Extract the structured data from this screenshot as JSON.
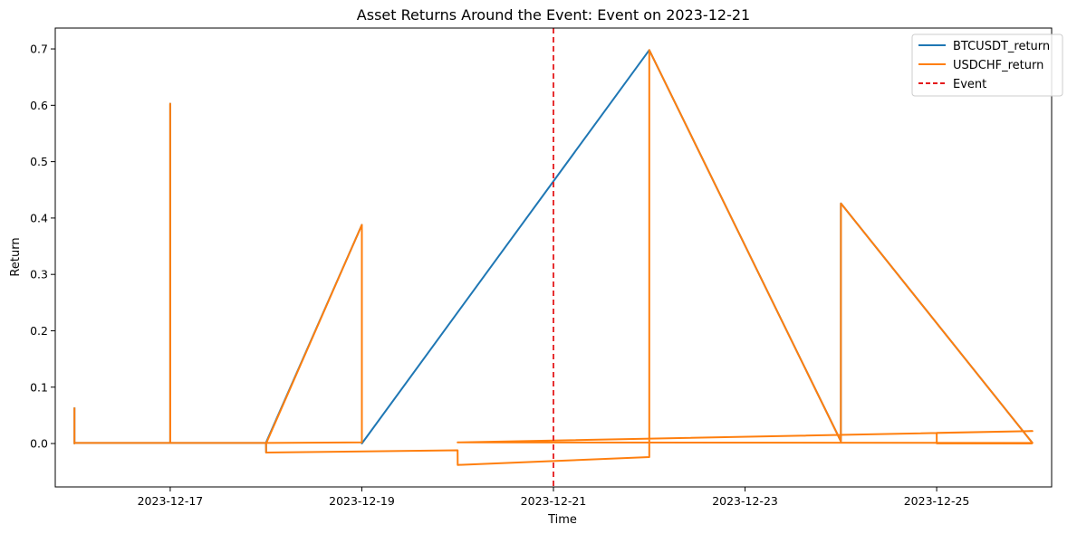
{
  "chart_data": {
    "type": "line",
    "title": "Asset Returns Around the Event: Event on 2023-12-21",
    "xlabel": "Time",
    "ylabel": "Return",
    "x_ticks": [
      "2023-12-17",
      "2023-12-19",
      "2023-12-21",
      "2023-12-23",
      "2023-12-25"
    ],
    "y_ticks": [
      "0.0",
      "0.1",
      "0.2",
      "0.3",
      "0.4",
      "0.5",
      "0.6",
      "0.7"
    ],
    "xlim": [
      "2023-12-15 19:12",
      "2023-12-26 04:48"
    ],
    "ylim": [
      -0.077,
      0.737
    ],
    "grid": false,
    "legend_position": "top-right",
    "event_date": "2023-12-21",
    "colors": {
      "BTCUSDT_return": "#1f77b4",
      "USDCHF_return": "#ff7f0e",
      "Event": "#e41a1c"
    },
    "series": [
      {
        "name": "BTCUSDT_return",
        "x": [
          "2023-12-16 00:00",
          "2023-12-16 00:00",
          "2023-12-16 00:01",
          "2023-12-17 00:00",
          "2023-12-17 00:00",
          "2023-12-17 00:01",
          "2023-12-18 00:00",
          "2023-12-18 00:01",
          "2023-12-18 00:02",
          "2023-12-19 00:00",
          "2023-12-19 00:00",
          "2023-12-19 00:01",
          "2023-12-22 00:00",
          "2023-12-22 00:00",
          "2023-12-24 00:00",
          "2023-12-24 00:00",
          "2023-12-24 00:01",
          "2023-12-26 00:00"
        ],
        "y": [
          0.064,
          0.0,
          0.001,
          0.001,
          0.603,
          0.001,
          0.001,
          -0.016,
          0.002,
          0.388,
          0.388,
          0.0,
          0.698,
          0.698,
          0.004,
          0.426,
          0.426,
          0.001
        ]
      },
      {
        "name": "USDCHF_return",
        "x": [
          "2023-12-16 00:00",
          "2023-12-16 00:00",
          "2023-12-16 00:01",
          "2023-12-17 00:00",
          "2023-12-17 00:00",
          "2023-12-17 00:01",
          "2023-12-18 00:00",
          "2023-12-18 00:01",
          "2023-12-19 00:00",
          "2023-12-19 00:01",
          "2023-12-18 00:00",
          "2023-12-18 00:01",
          "2023-12-20 00:00",
          "2023-12-20 00:01",
          "2023-12-22 00:00",
          "2023-12-22 00:01",
          "2023-12-24 00:00",
          "2023-12-24 00:01",
          "2023-12-26 00:00",
          "2023-12-20 00:00",
          "2023-12-26 00:00",
          "2023-12-25 00:00",
          "2023-12-25 00:01",
          "2023-12-26 00:00"
        ],
        "y": [
          0.064,
          0.0,
          0.001,
          0.001,
          0.603,
          0.001,
          0.001,
          0.0,
          0.388,
          0.002,
          0.001,
          -0.016,
          -0.012,
          -0.038,
          -0.024,
          0.698,
          0.004,
          0.426,
          0.001,
          0.002,
          0.022,
          0.019,
          0.0,
          0.0
        ]
      }
    ]
  },
  "legend": {
    "items": [
      {
        "label": "BTCUSDT_return",
        "style": "solid",
        "color": "#1f77b4"
      },
      {
        "label": "USDCHF_return",
        "style": "solid",
        "color": "#ff7f0e"
      },
      {
        "label": "Event",
        "style": "dashed",
        "color": "#e41a1c"
      }
    ]
  }
}
